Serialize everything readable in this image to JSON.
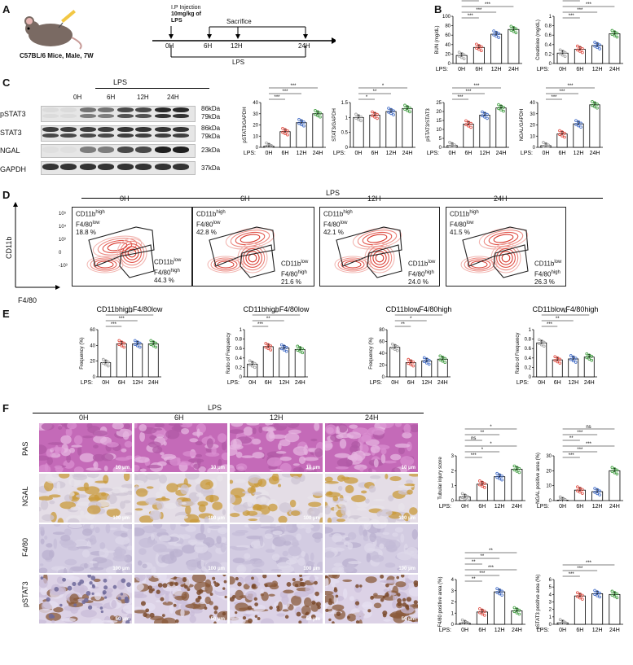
{
  "panels": {
    "A": "A",
    "B": "B",
    "C": "C",
    "D": "D",
    "E": "E",
    "F": "F"
  },
  "panelA": {
    "mouse": "C57BL/6 Mice, Male, 7W",
    "injection_line1": "I.P Injection",
    "injection_line2": "10mg/kg of",
    "injection_line3": "LPS",
    "sacrifice": "Sacrifice",
    "times": [
      "0H",
      "6H",
      "12H",
      "24H"
    ],
    "lps": "LPS"
  },
  "lps_prefix": "LPS:",
  "timepoints": [
    "0H",
    "6H",
    "12H",
    "24H"
  ],
  "blot": {
    "header": "LPS",
    "lanes": [
      "0H",
      "6H",
      "12H",
      "24H"
    ],
    "rows": [
      "pSTAT3",
      "STAT3",
      "NGAL",
      "GAPDH"
    ],
    "kda": [
      "86kDa",
      "79kDa",
      "86kDa",
      "79kDa",
      "23kDa",
      "37kDa"
    ]
  },
  "flow": {
    "header": "LPS",
    "yaxis": "CD11b",
    "xaxis": "F4/80",
    "ticks": [
      "10⁵",
      "10⁴",
      "10³",
      "0",
      "-10³"
    ],
    "gate_high": [
      "CD11b",
      "high",
      "F4/80",
      "low"
    ],
    "gate_low": [
      "CD11b",
      "low",
      "F4/80",
      "high"
    ],
    "panels": [
      {
        "time": "0H",
        "high_pct": "18.8 %",
        "low_pct": "44.3 %"
      },
      {
        "time": "6H",
        "high_pct": "42.8 %",
        "low_pct": "21.6 %"
      },
      {
        "time": "12H",
        "high_pct": "42.1 %",
        "low_pct": "24.0 %"
      },
      {
        "time": "24H",
        "high_pct": "41.5 %",
        "low_pct": "26.3 %"
      }
    ]
  },
  "histology": {
    "header": "LPS",
    "cols": [
      "0H",
      "6H",
      "12H",
      "24H"
    ],
    "rows": [
      "PAS",
      "NGAL",
      "F4/80",
      "pSTAT3"
    ],
    "scale": [
      "10 μm",
      "100 μm",
      "100 μm",
      "50 μm"
    ],
    "colors": {
      "PAS": "#c77fbf",
      "NGAL": "#d9d2dc",
      "F4/80": "#cfc9de",
      "pSTAT3": "#d8cde0"
    }
  },
  "chart_data": [
    {
      "id": "bun",
      "type": "bar",
      "ylabel": "BUN (mg/dL)",
      "ylim": [
        0,
        100
      ],
      "ticks": [
        0,
        20,
        40,
        60,
        80,
        100
      ],
      "categories": [
        "0H",
        "6H",
        "12H",
        "24H"
      ],
      "values": [
        17,
        34,
        62,
        72
      ],
      "colors": [
        "#9e9e9e",
        "#e0473c",
        "#3a66c4",
        "#3a9a3a"
      ],
      "sig": [
        "***",
        "***",
        "***",
        "***",
        "***",
        "*"
      ]
    },
    {
      "id": "creat",
      "type": "bar",
      "ylabel": "Creatinine (mg/dL)",
      "ylim": [
        0,
        1.0
      ],
      "ticks": [
        0,
        0.2,
        0.4,
        0.6,
        0.8,
        1.0
      ],
      "categories": [
        "0H",
        "6H",
        "12H",
        "24H"
      ],
      "values": [
        0.22,
        0.3,
        0.38,
        0.63
      ],
      "colors": [
        "#9e9e9e",
        "#e0473c",
        "#3a66c4",
        "#3a9a3a"
      ],
      "sig": [
        "***",
        "***",
        "***",
        "***",
        "**",
        "***"
      ]
    },
    {
      "id": "pstat_gapdh",
      "type": "bar",
      "ylabel": "pSTAT3/GAPDH",
      "ylim": [
        0,
        40
      ],
      "ticks": [
        0,
        10,
        20,
        30,
        40
      ],
      "categories": [
        "0H",
        "6H",
        "12H",
        "24H"
      ],
      "values": [
        1,
        14,
        22,
        30
      ],
      "colors": [
        "#9e9e9e",
        "#e0473c",
        "#3a66c4",
        "#3a9a3a"
      ],
      "sig": [
        "***",
        "***",
        "***"
      ]
    },
    {
      "id": "stat_gapdh",
      "type": "bar",
      "ylabel": "STAT3/GAPDH",
      "ylim": [
        0,
        1.5
      ],
      "ticks": [
        0,
        0.5,
        1.0,
        1.5
      ],
      "categories": [
        "0H",
        "6H",
        "12H",
        "24H"
      ],
      "values": [
        1.0,
        1.08,
        1.2,
        1.3
      ],
      "colors": [
        "#9e9e9e",
        "#e0473c",
        "#3a66c4",
        "#3a9a3a"
      ],
      "sig": [
        "*",
        "**",
        "*"
      ]
    },
    {
      "id": "pstat_stat",
      "type": "bar",
      "ylabel": "pSTAT3/STAT3",
      "ylim": [
        0,
        25
      ],
      "ticks": [
        0,
        5,
        10,
        15,
        20,
        25
      ],
      "categories": [
        "0H",
        "6H",
        "12H",
        "24H"
      ],
      "values": [
        1,
        13,
        18,
        22
      ],
      "colors": [
        "#9e9e9e",
        "#e0473c",
        "#3a66c4",
        "#3a9a3a"
      ],
      "sig": [
        "***",
        "***",
        "***"
      ]
    },
    {
      "id": "ngal_gapdh",
      "type": "bar",
      "ylabel": "NGAL/GAPDH",
      "ylim": [
        0,
        40
      ],
      "ticks": [
        0,
        10,
        20,
        30,
        40
      ],
      "categories": [
        "0H",
        "6H",
        "12H",
        "24H"
      ],
      "values": [
        1.5,
        12,
        21,
        38
      ],
      "colors": [
        "#9e9e9e",
        "#e0473c",
        "#3a66c4",
        "#3a9a3a"
      ],
      "sig": [
        "***",
        "***",
        "***"
      ]
    },
    {
      "id": "e1",
      "type": "bar",
      "title": "CD11bhighF4/80low",
      "ylabel": "Frequency (%)",
      "ylim": [
        0,
        60
      ],
      "ticks": [
        0,
        20,
        40,
        60
      ],
      "categories": [
        "0H",
        "6H",
        "12H",
        "24H"
      ],
      "values": [
        18,
        42,
        42,
        42
      ],
      "colors": [
        "#9e9e9e",
        "#e0473c",
        "#3a66c4",
        "#3a9a3a"
      ],
      "sig": [
        "***",
        "***",
        "***"
      ]
    },
    {
      "id": "e2",
      "type": "bar",
      "title": "CD11bhighF4/80low",
      "ylabel": "Ratio of Frequency",
      "ylim": [
        0,
        1.0
      ],
      "ticks": [
        0,
        0.2,
        0.4,
        0.6,
        0.8,
        1.0
      ],
      "categories": [
        "0H",
        "6H",
        "12H",
        "24H"
      ],
      "values": [
        0.27,
        0.64,
        0.61,
        0.58
      ],
      "colors": [
        "#9e9e9e",
        "#e0473c",
        "#3a66c4",
        "#3a9a3a"
      ],
      "sig": [
        "***",
        "**",
        "**"
      ]
    },
    {
      "id": "e3",
      "type": "bar",
      "title": "CD11blowF4/80high",
      "ylabel": "Frequency (%)",
      "ylim": [
        0,
        80
      ],
      "ticks": [
        0,
        20,
        40,
        60,
        80
      ],
      "categories": [
        "0H",
        "6H",
        "12H",
        "24H"
      ],
      "values": [
        50,
        24,
        27,
        30
      ],
      "colors": [
        "#9e9e9e",
        "#e0473c",
        "#3a66c4",
        "#3a9a3a"
      ],
      "sig": [
        "**",
        "*",
        "*"
      ]
    },
    {
      "id": "e4",
      "type": "bar",
      "title": "CD11blowF4/80high",
      "ylabel": "Ratio of Frequency",
      "ylim": [
        0,
        1.0
      ],
      "ticks": [
        0,
        0.2,
        0.4,
        0.6,
        0.8,
        1.0
      ],
      "categories": [
        "0H",
        "6H",
        "12H",
        "24H"
      ],
      "values": [
        0.72,
        0.36,
        0.38,
        0.42
      ],
      "colors": [
        "#9e9e9e",
        "#e0473c",
        "#3a66c4",
        "#3a9a3a"
      ],
      "sig": [
        "***",
        "**",
        "**"
      ]
    },
    {
      "id": "tis",
      "type": "bar",
      "ylabel": "Tubular injury score",
      "ylim": [
        0,
        3
      ],
      "ticks": [
        0,
        1,
        2,
        3
      ],
      "categories": [
        "0H",
        "6H",
        "12H",
        "24H"
      ],
      "values": [
        0.25,
        1.1,
        1.6,
        2.1
      ],
      "colors": [
        "#9e9e9e",
        "#e0473c",
        "#3a66c4",
        "#3a9a3a"
      ],
      "sig": [
        "***",
        "*",
        "*",
        "ns",
        "**",
        "*"
      ]
    },
    {
      "id": "ngalarea",
      "type": "bar",
      "ylabel": "NGAL positive area (%)",
      "ylim": [
        0,
        30
      ],
      "ticks": [
        0,
        10,
        20,
        30
      ],
      "categories": [
        "0H",
        "6H",
        "12H",
        "24H"
      ],
      "values": [
        0.3,
        7,
        6,
        20
      ],
      "colors": [
        "#9e9e9e",
        "#e0473c",
        "#3a66c4",
        "#3a9a3a"
      ],
      "sig": [
        "***",
        "***",
        "***",
        "**",
        "***",
        "ns"
      ]
    },
    {
      "id": "f480area",
      "type": "bar",
      "ylabel": "F4/80 positive area (%)",
      "ylim": [
        0,
        4
      ],
      "ticks": [
        0,
        1,
        2,
        3,
        4
      ],
      "categories": [
        "0H",
        "6H",
        "12H",
        "24H"
      ],
      "values": [
        0.1,
        1.1,
        2.9,
        1.2
      ],
      "colors": [
        "#9e9e9e",
        "#e0473c",
        "#3a66c4",
        "#3a9a3a"
      ],
      "sig": [
        "**",
        "***",
        "***",
        "**",
        "**",
        "**"
      ]
    },
    {
      "id": "pstatarea",
      "type": "bar",
      "ylabel": "pSTAT3 positive area (%)",
      "ylim": [
        0,
        6
      ],
      "ticks": [
        0,
        1,
        2,
        3,
        4,
        5,
        6
      ],
      "categories": [
        "0H",
        "6H",
        "12H",
        "24H"
      ],
      "values": [
        0.2,
        3.8,
        4.1,
        4.0
      ],
      "colors": [
        "#9e9e9e",
        "#e0473c",
        "#3a66c4",
        "#3a9a3a"
      ],
      "sig": [
        "***",
        "***",
        "***"
      ]
    }
  ]
}
